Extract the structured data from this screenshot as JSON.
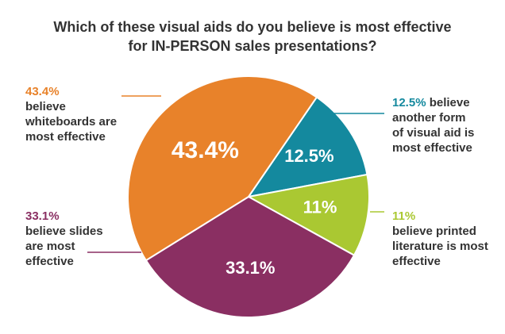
{
  "title": {
    "line1": "Which of these visual aids do you believe is most effective",
    "line2": "for IN-PERSON sales presentations?"
  },
  "chart_data": {
    "type": "pie",
    "title": "Which of these visual aids do you believe is most effective for IN-PERSON sales presentations?",
    "slices": [
      {
        "label": "believe whiteboards are most effective",
        "value": 43.4,
        "display": "43.4%",
        "color": "#e8822a",
        "annotation": {
          "pct": "43.4%",
          "lines": [
            "believe",
            "whiteboards are",
            "most effective"
          ]
        }
      },
      {
        "label": "believe another form of visual aid is most effective",
        "value": 12.5,
        "display": "12.5%",
        "color": "#14899e",
        "annotation": {
          "pct": "12.5%",
          "lines": [
            "believe",
            "another form",
            "of visual aid is",
            "most effective"
          ]
        }
      },
      {
        "label": "believe printed literature is most effective",
        "value": 11,
        "display": "11%",
        "color": "#aac832",
        "annotation": {
          "pct": "11%",
          "lines": [
            "believe printed",
            "literature is most",
            "effective"
          ]
        }
      },
      {
        "label": "believe slides are most effective",
        "value": 33.1,
        "display": "33.1%",
        "color": "#8a2f62",
        "annotation": {
          "pct": "33.1%",
          "lines": [
            "believe slides",
            "are most",
            "effective"
          ]
        }
      }
    ]
  }
}
